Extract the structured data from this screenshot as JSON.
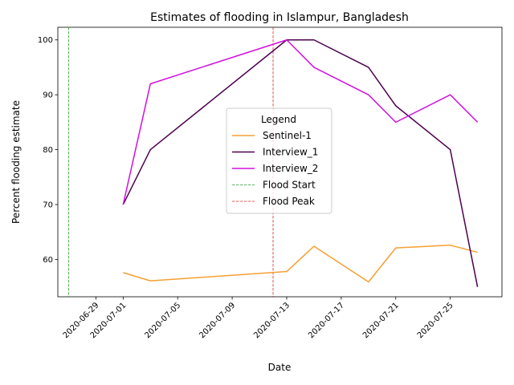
{
  "chart_data": {
    "type": "line",
    "title": "Estimates of flooding in Islampur, Bangladesh",
    "xlabel": "Date",
    "ylabel": "Percent flooding estimate",
    "xlim": [
      "2020-06-26T05:00",
      "2020-07-28T19:00"
    ],
    "ylim": [
      53.2,
      102.3
    ],
    "x_ticks": [
      "2020-06-29",
      "2020-07-01",
      "2020-07-05",
      "2020-07-09",
      "2020-07-13",
      "2020-07-17",
      "2020-07-21",
      "2020-07-25"
    ],
    "y_ticks": [
      60,
      70,
      80,
      90,
      100
    ],
    "grid": false,
    "legend": {
      "title": "Legend",
      "placement": "center"
    },
    "series": [
      {
        "name": "Sentinel-1",
        "color": "#f5a031",
        "points": [
          [
            "2020-07-01",
            57.6
          ],
          [
            "2020-07-03",
            56.1
          ],
          [
            "2020-07-13",
            57.8
          ],
          [
            "2020-07-15",
            62.4
          ],
          [
            "2020-07-19",
            55.9
          ],
          [
            "2020-07-21",
            62.1
          ],
          [
            "2020-07-25",
            62.6
          ],
          [
            "2020-07-27",
            61.3
          ]
        ]
      },
      {
        "name": "Interview_1",
        "color": "#4d0050",
        "points": [
          [
            "2020-07-01",
            70
          ],
          [
            "2020-07-03",
            80
          ],
          [
            "2020-07-13",
            100
          ],
          [
            "2020-07-15",
            100
          ],
          [
            "2020-07-19",
            95
          ],
          [
            "2020-07-21",
            88
          ],
          [
            "2020-07-25",
            80
          ],
          [
            "2020-07-27",
            55
          ]
        ]
      },
      {
        "name": "Interview_2",
        "color": "#d110e0",
        "points": [
          [
            "2020-07-01",
            70
          ],
          [
            "2020-07-03",
            92
          ],
          [
            "2020-07-13",
            100
          ],
          [
            "2020-07-15",
            95
          ],
          [
            "2020-07-19",
            90
          ],
          [
            "2020-07-21",
            85
          ],
          [
            "2020-07-25",
            90
          ],
          [
            "2020-07-27",
            85
          ]
        ]
      }
    ],
    "vlines": [
      {
        "name": "Flood Start",
        "date": "2020-06-27",
        "color": "#2ca02c",
        "style": "dashed"
      },
      {
        "name": "Flood Peak",
        "date": "2020-07-12",
        "color": "#d62728",
        "style": "dashed"
      }
    ]
  }
}
